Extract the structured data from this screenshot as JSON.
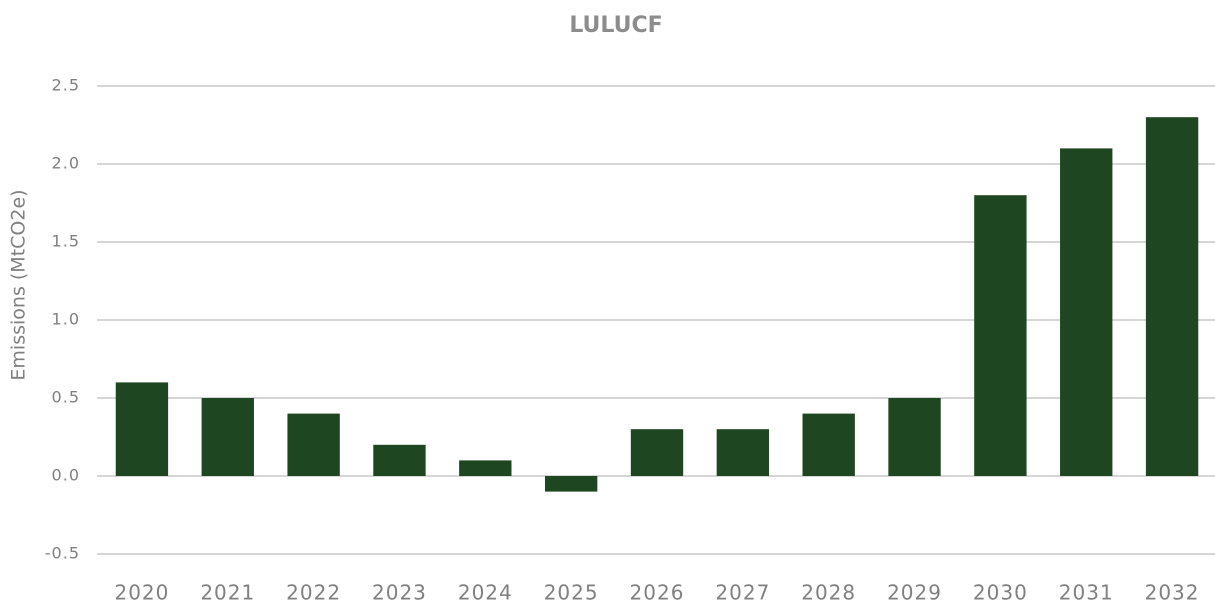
{
  "chart_data": {
    "type": "bar",
    "title": "LULUCF",
    "y_label": "Emissions (MtCO2e)",
    "categories": [
      "2020",
      "2021",
      "2022",
      "2023",
      "2024",
      "2025",
      "2026",
      "2027",
      "2028",
      "2029",
      "2030",
      "2031",
      "2032"
    ],
    "values": [
      0.6,
      0.5,
      0.4,
      0.2,
      0.1,
      -0.1,
      0.3,
      0.3,
      0.4,
      0.5,
      1.8,
      2.1,
      2.3
    ],
    "color": "#1e4620",
    "ylim": [
      -0.5,
      2.5
    ],
    "yticks": [
      -0.5,
      {
        "value": 0,
        "label": "0.0"
      },
      0.5,
      {
        "value": 1,
        "label": "1.0"
      },
      1.5,
      {
        "value": 2,
        "label": "2.0"
      },
      2.5
    ],
    "grid": true
  }
}
